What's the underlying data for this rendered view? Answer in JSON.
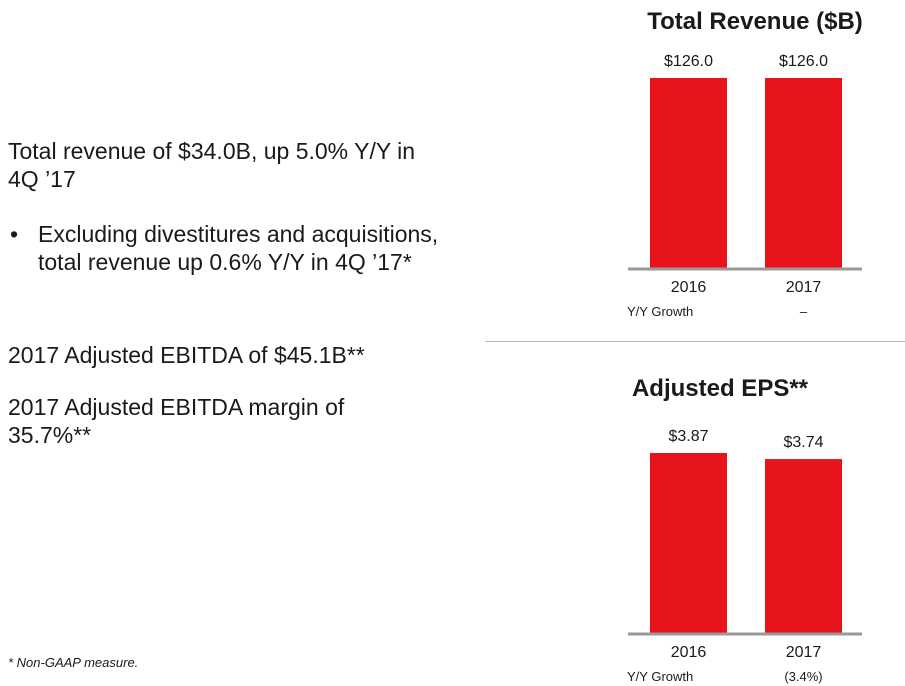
{
  "bullets": {
    "line1": "Total revenue of $34.0B, up 5.0% Y/Y in 4Q ’17",
    "sub1": "Excluding divestitures and acquisitions, total revenue up 0.6% Y/Y in 4Q ’17*",
    "line2": "2017 Adjusted EBITDA of $45.1B**",
    "line3": "2017 Adjusted EBITDA margin of 35.7%**",
    "bullet_char": "•"
  },
  "footnote": "* Non-GAAP measure.",
  "chart_data": [
    {
      "type": "bar",
      "title": "Total Revenue ($B)",
      "categories": [
        "2016",
        "2017"
      ],
      "values": [
        126.0,
        126.0
      ],
      "data_labels": [
        "$126.0",
        "$126.0"
      ],
      "ylim": [
        0,
        126.0
      ],
      "color": "#e8141c",
      "growth_label": "Y/Y Growth",
      "growth": [
        "",
        "–"
      ]
    },
    {
      "type": "bar",
      "title": "Adjusted EPS**",
      "categories": [
        "2016",
        "2017"
      ],
      "values": [
        3.87,
        3.74
      ],
      "data_labels": [
        "$3.87",
        "$3.74"
      ],
      "ylim": [
        0,
        3.87
      ],
      "color": "#e8141c",
      "growth_label": "Y/Y Growth",
      "growth": [
        "",
        "(3.4%)"
      ]
    }
  ]
}
